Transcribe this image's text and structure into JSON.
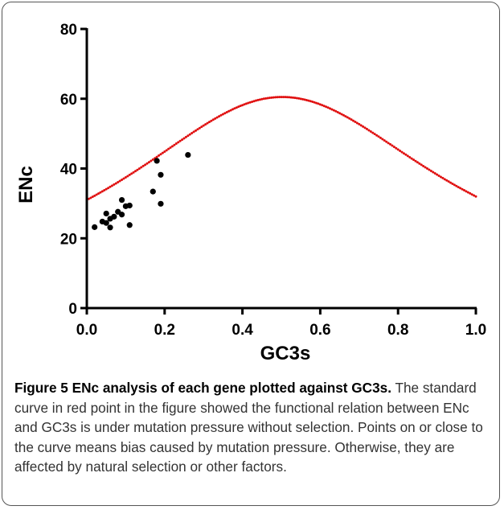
{
  "chart_data": {
    "type": "scatter",
    "xlabel": "GC3s",
    "ylabel": "ENc",
    "xlim": [
      0.0,
      1.0
    ],
    "ylim": [
      0,
      80
    ],
    "x_ticks": [
      "0.0",
      "0.2",
      "0.4",
      "0.6",
      "0.8",
      "1.0"
    ],
    "y_ticks": [
      "0",
      "20",
      "40",
      "60",
      "80"
    ],
    "series": [
      {
        "kind": "points",
        "color": "#000000",
        "points": [
          [
            0.02,
            23.2
          ],
          [
            0.04,
            24.8
          ],
          [
            0.05,
            27.1
          ],
          [
            0.05,
            24.4
          ],
          [
            0.06,
            23.1
          ],
          [
            0.06,
            25.6
          ],
          [
            0.07,
            26.2
          ],
          [
            0.08,
            27.6
          ],
          [
            0.09,
            31.0
          ],
          [
            0.09,
            26.8
          ],
          [
            0.1,
            29.2
          ],
          [
            0.11,
            29.4
          ],
          [
            0.11,
            23.8
          ],
          [
            0.17,
            33.4
          ],
          [
            0.18,
            42.2
          ],
          [
            0.19,
            29.9
          ],
          [
            0.19,
            38.2
          ],
          [
            0.26,
            43.9
          ]
        ]
      },
      {
        "kind": "standard-curve",
        "color": "#e01010",
        "formula": "ENc = 2 + s + 29/(s^2 + (1-s)^2)"
      }
    ]
  },
  "caption": {
    "label": "Figure 5 ENc analysis of each gene plotted against GC3s.",
    "text": " The standard curve in red point in the figure showed the functional relation between ENc and GC3s is under mutation pressure without selection. Points on or close to the curve means bias caused by mutation pressure. Otherwise, they are affected by natural selection or other factors."
  }
}
